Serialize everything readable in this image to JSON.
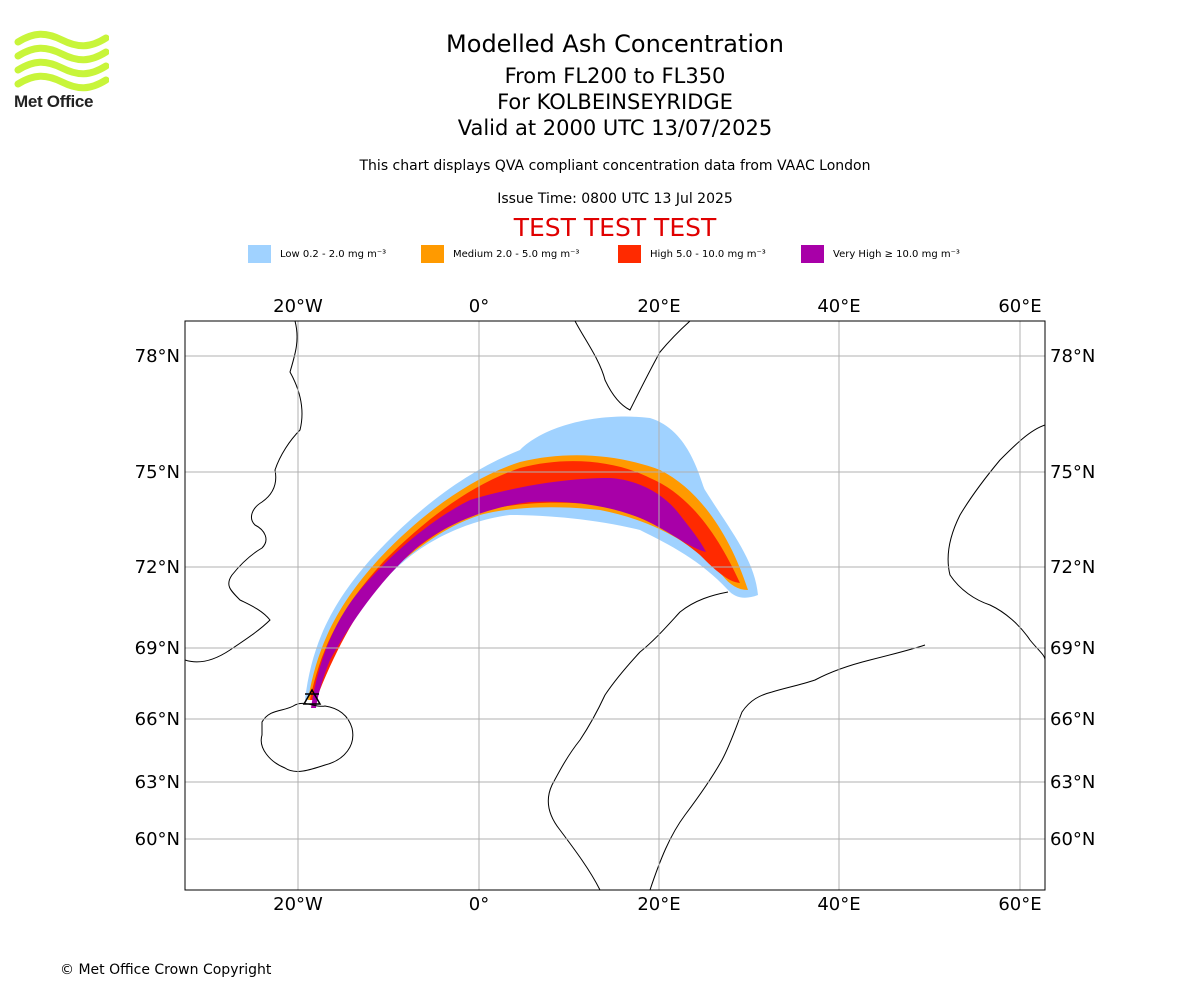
{
  "logo": {
    "wordmark": "Met Office",
    "color": "#c8f53a"
  },
  "header": {
    "title": "Modelled Ash Concentration",
    "levels": "From FL200 to FL350",
    "volcano": "For KOLBEINSEYRIDGE",
    "valid": "Valid at 2000 UTC 13/07/2025",
    "subtitle": "This chart displays QVA compliant concentration data from VAAC London",
    "issue": "Issue Time: 0800 UTC 13 Jul 2025",
    "test_banner": "TEST TEST TEST",
    "test_color": "#e00000"
  },
  "legend": [
    {
      "label": "Low 0.2 - 2.0 mg m⁻³",
      "color": "#a0d2ff"
    },
    {
      "label": "Medium 2.0 - 5.0 mg m⁻³",
      "color": "#ff9a00"
    },
    {
      "label": "High 5.0 - 10.0 mg m⁻³",
      "color": "#ff2a00"
    },
    {
      "label": "Very High ≥ 10.0 mg m⁻³",
      "color": "#a800a8"
    }
  ],
  "map": {
    "projection": "polar-stereographic",
    "grid": true,
    "lon_ticks": [
      "20°W",
      "0°",
      "20°E",
      "40°E",
      "60°E"
    ],
    "lat_ticks": [
      "78°N",
      "75°N",
      "72°N",
      "69°N",
      "66°N",
      "63°N",
      "60°N"
    ],
    "source_marker": "volcano-triangle",
    "source_location": "Kolbeinsey Ridge, north of Iceland"
  },
  "footer": {
    "copyright": "© Met Office Crown Copyright"
  }
}
